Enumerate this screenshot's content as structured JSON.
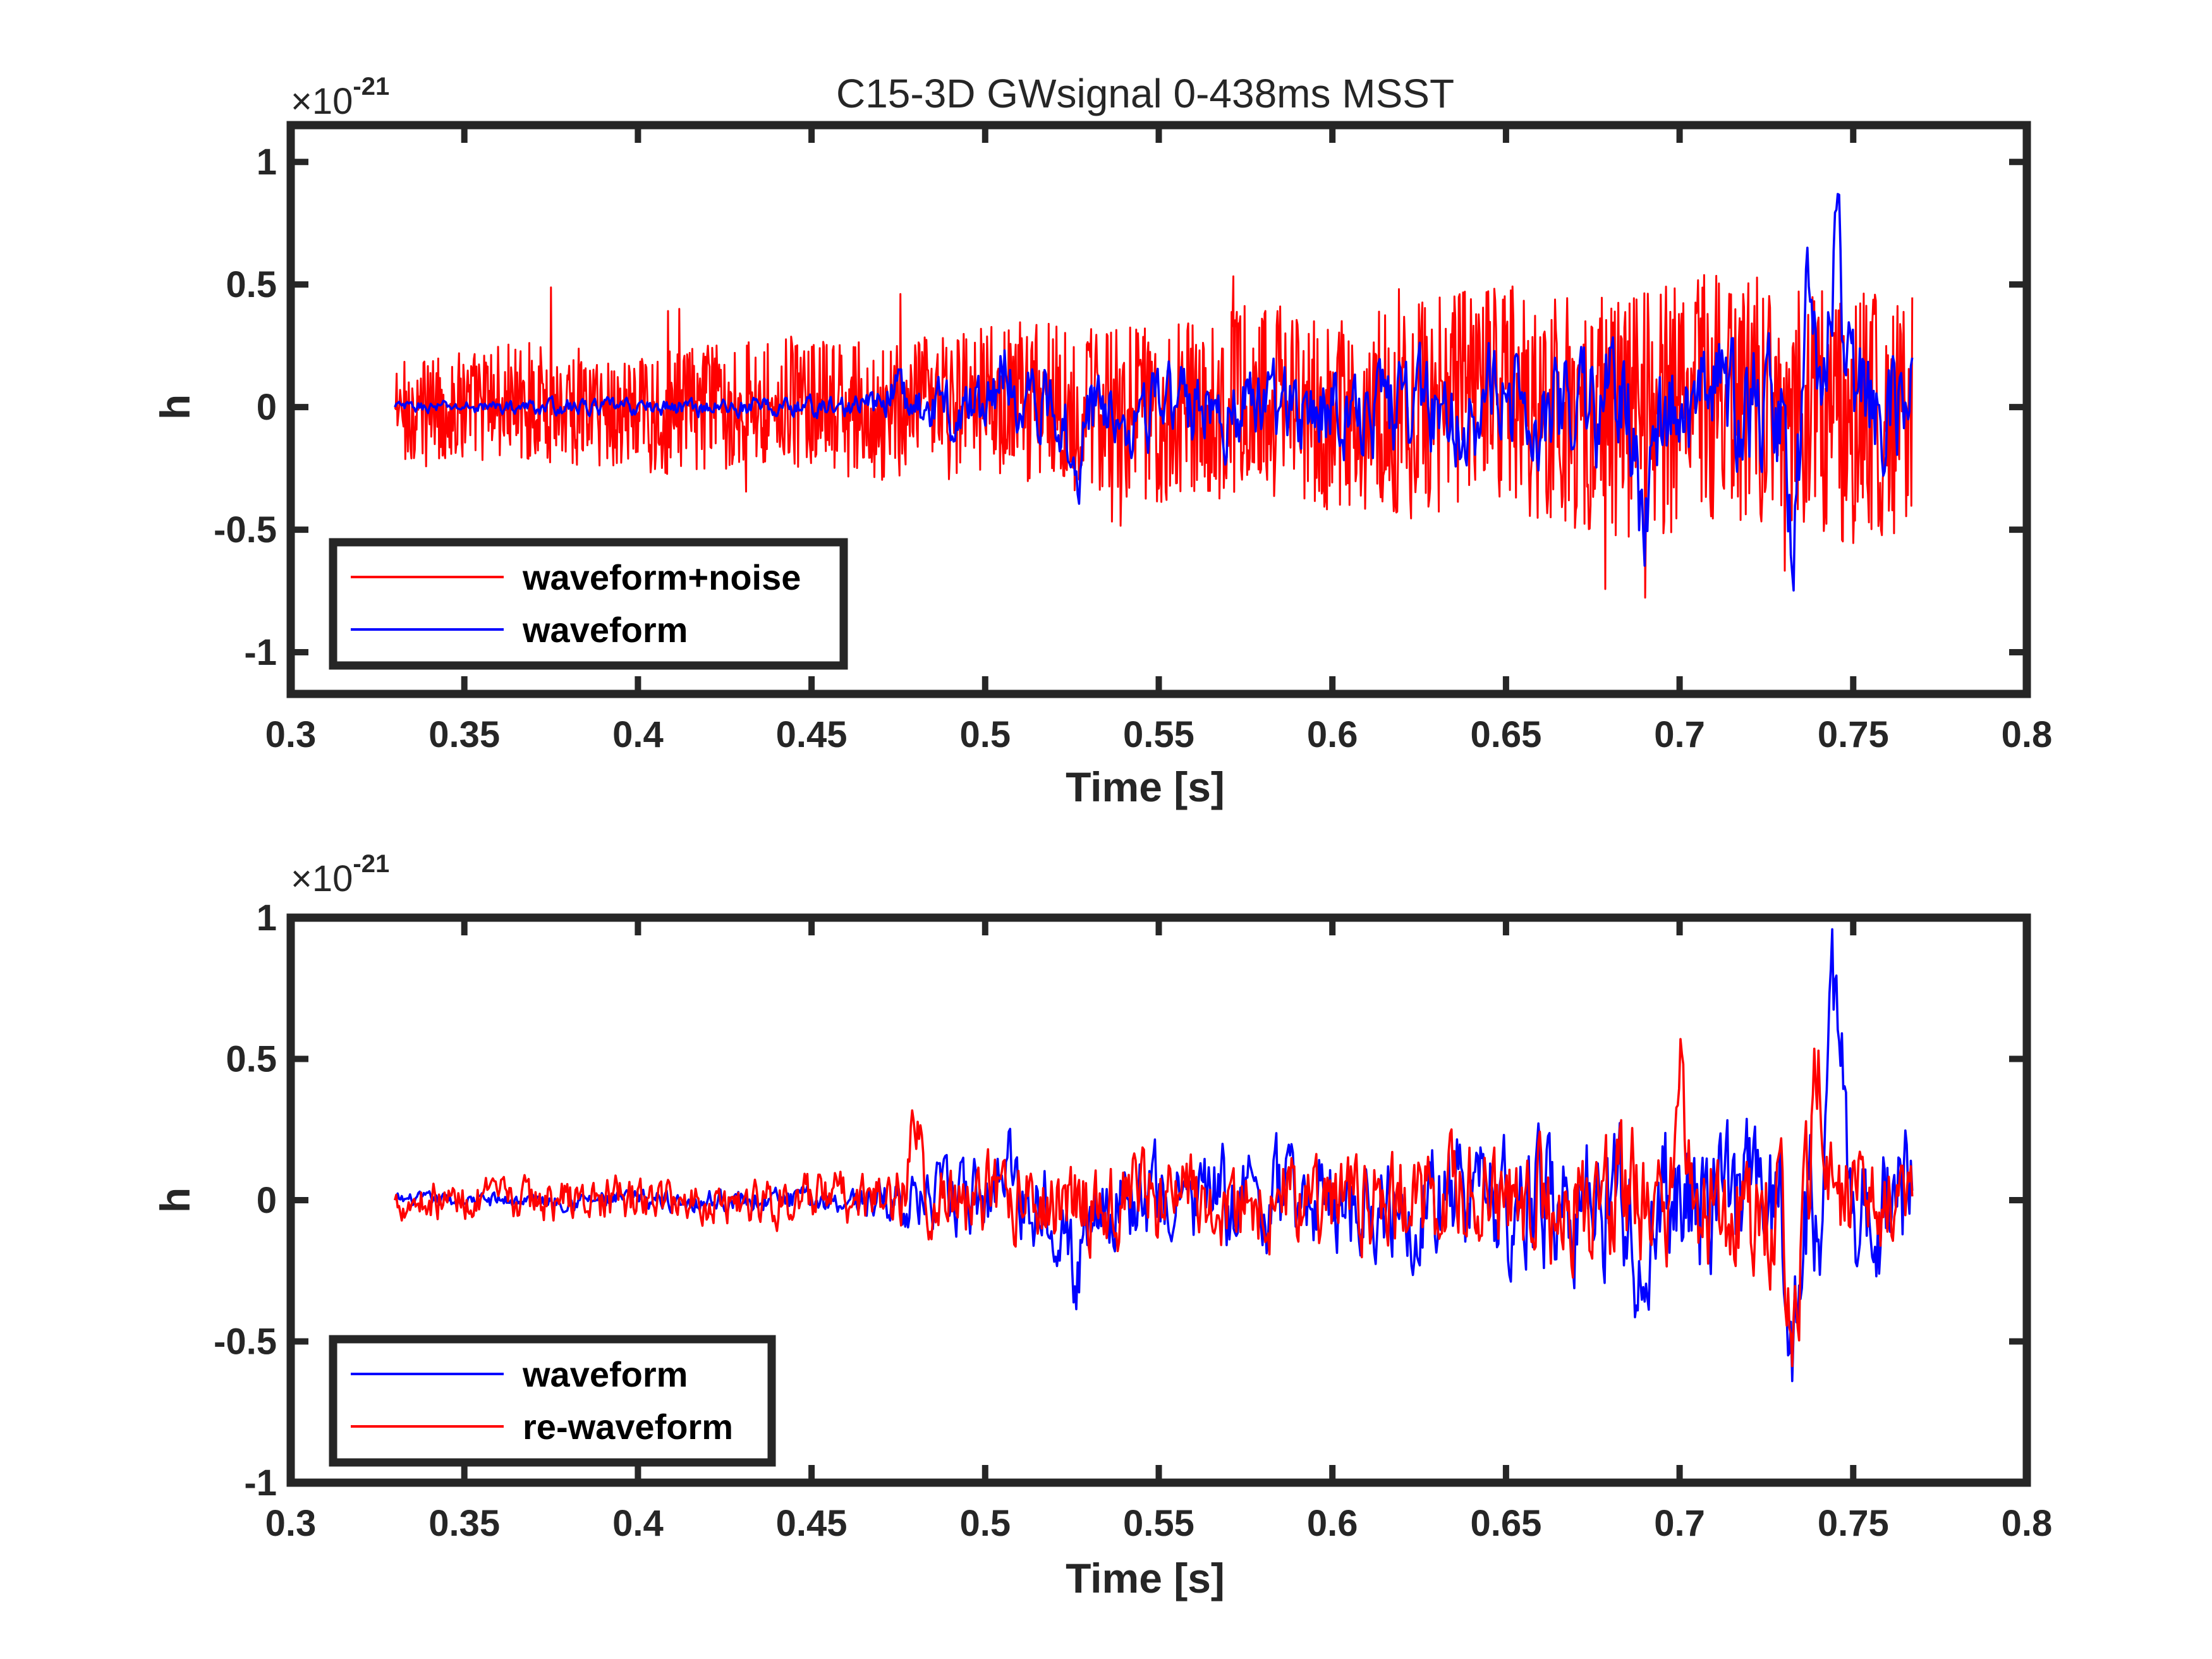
{
  "figure_title": "C15-3D GWsignal 0-438ms MSST",
  "colors": {
    "red": "#ff0000",
    "blue": "#0000ff",
    "axis": "#262626"
  },
  "chart_data": [
    {
      "type": "line",
      "title": "C15-3D GWsignal 0-438ms MSST",
      "xlabel": "Time [s]",
      "ylabel": "h",
      "exponent_base": "×10",
      "exponent_power": "-21",
      "xlim": [
        0.3,
        0.8
      ],
      "ylim": [
        -1.17,
        1.15
      ],
      "xticks": [
        0.3,
        0.35,
        0.4,
        0.45,
        0.5,
        0.55,
        0.6,
        0.65,
        0.7,
        0.75,
        0.8
      ],
      "xtick_labels": [
        "0.3",
        "0.35",
        "0.4",
        "0.45",
        "0.5",
        "0.55",
        "0.6",
        "0.65",
        "0.7",
        "0.75",
        "0.8"
      ],
      "yticks": [
        -1,
        -0.5,
        0,
        0.5,
        1
      ],
      "ytick_labels": [
        "-1",
        "-0.5",
        "0",
        "0.5",
        "1"
      ],
      "legend_position": "bottom-left",
      "x_range": [
        0.33,
        0.767
      ],
      "series": [
        {
          "name": "waveform+noise",
          "color": "#ff0000",
          "generator": "noisy",
          "envelope": [
            [
              0.33,
              0.14
            ],
            [
              0.47,
              0.18
            ],
            [
              0.6,
              0.26
            ],
            [
              0.7,
              0.32
            ],
            [
              0.767,
              0.32
            ]
          ]
        },
        {
          "name": "waveform",
          "color": "#0000ff",
          "generator": "clean",
          "envelope": [
            [
              0.33,
              0.02
            ],
            [
              0.46,
              0.04
            ],
            [
              0.5,
              0.13
            ],
            [
              0.6,
              0.16
            ],
            [
              0.68,
              0.22
            ],
            [
              0.72,
              0.24
            ],
            [
              0.767,
              0.22
            ]
          ],
          "bursts": [
            [
              0.474,
              0.1
            ],
            [
              0.506,
              0.2
            ],
            [
              0.526,
              -0.25
            ],
            [
              0.69,
              -0.5
            ],
            [
              0.733,
              -0.45
            ],
            [
              0.737,
              0.4
            ],
            [
              0.745,
              0.6
            ]
          ]
        }
      ]
    },
    {
      "type": "line",
      "title": "",
      "xlabel": "Time [s]",
      "ylabel": "h",
      "exponent_base": "×10",
      "exponent_power": "-21",
      "xlim": [
        0.3,
        0.8
      ],
      "ylim": [
        -1,
        1
      ],
      "xticks": [
        0.3,
        0.35,
        0.4,
        0.45,
        0.5,
        0.55,
        0.6,
        0.65,
        0.7,
        0.75,
        0.8
      ],
      "xtick_labels": [
        "0.3",
        "0.35",
        "0.4",
        "0.45",
        "0.5",
        "0.55",
        "0.6",
        "0.65",
        "0.7",
        "0.75",
        "0.8"
      ],
      "yticks": [
        -1,
        -0.5,
        0,
        0.5,
        1
      ],
      "ytick_labels": [
        "-1",
        "-0.5",
        "0",
        "0.5",
        "1"
      ],
      "legend_position": "bottom-left",
      "x_range": [
        0.33,
        0.767
      ],
      "series": [
        {
          "name": "waveform",
          "color": "#0000ff",
          "generator": "clean",
          "envelope": [
            [
              0.33,
              0.02
            ],
            [
              0.46,
              0.04
            ],
            [
              0.5,
              0.13
            ],
            [
              0.6,
              0.16
            ],
            [
              0.68,
              0.22
            ],
            [
              0.72,
              0.24
            ],
            [
              0.767,
              0.22
            ]
          ],
          "bursts": [
            [
              0.506,
              0.2
            ],
            [
              0.526,
              -0.3
            ],
            [
              0.69,
              -0.45
            ],
            [
              0.733,
              -0.45
            ],
            [
              0.745,
              0.7
            ]
          ]
        },
        {
          "name": "re-waveform",
          "color": "#ff0000",
          "generator": "reconstructed",
          "envelope": [
            [
              0.33,
              0.05
            ],
            [
              0.46,
              0.07
            ],
            [
              0.5,
              0.11
            ],
            [
              0.6,
              0.13
            ],
            [
              0.68,
              0.18
            ],
            [
              0.72,
              0.2
            ],
            [
              0.767,
              0.12
            ]
          ],
          "bursts": [
            [
              0.48,
              0.25
            ],
            [
              0.7,
              0.4
            ],
            [
              0.733,
              -0.5
            ],
            [
              0.74,
              0.4
            ]
          ]
        }
      ]
    }
  ]
}
